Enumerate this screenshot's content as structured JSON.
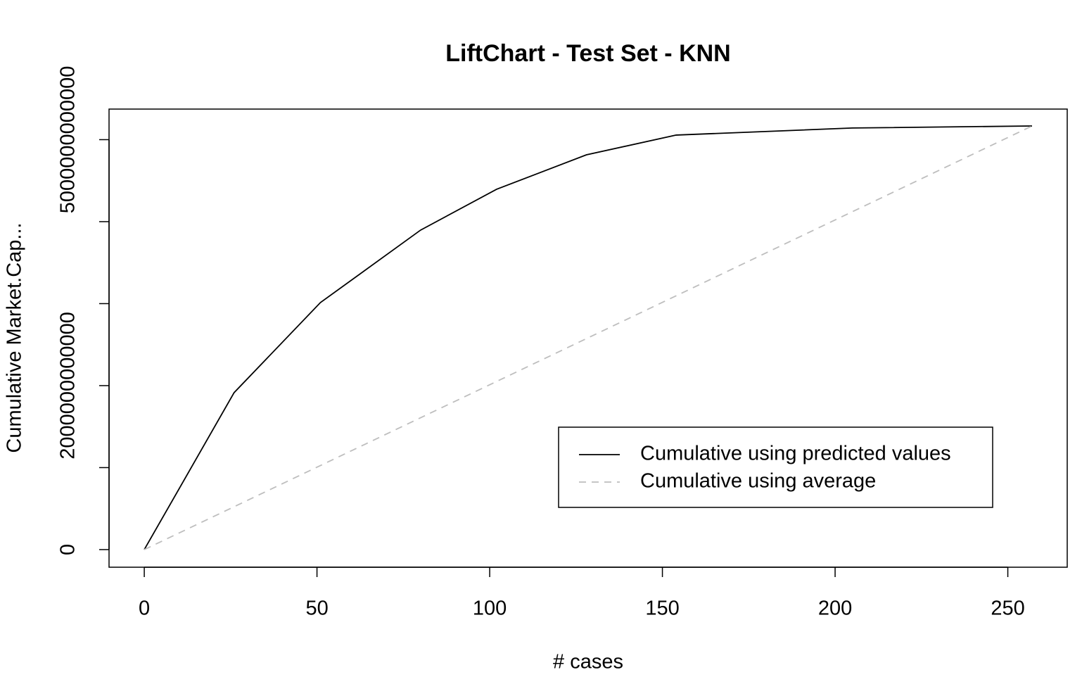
{
  "chart_data": {
    "type": "line",
    "title": "LiftChart - Test Set - KNN",
    "xlabel": "# cases",
    "ylabel": "Cumulative Market.Cap...",
    "xlim": [
      -10.2,
      267.2
    ],
    "ylim": [
      -215000000000,
      5373000000000
    ],
    "xticks": [
      0,
      50,
      100,
      150,
      200,
      250
    ],
    "yticks": [
      0,
      {
        "value": 1000000000000,
        "label": null
      },
      2000000000000,
      {
        "value": 3000000000000,
        "label": null
      },
      {
        "value": 4000000000000,
        "label": null
      },
      5000000000000
    ],
    "legend": "bottom-right",
    "series": [
      {
        "name": "Cumulative using predicted values",
        "color": "#000000",
        "dash": false,
        "x": [
          0,
          26,
          51,
          80,
          102,
          128,
          154,
          205,
          257
        ],
        "values": [
          0,
          1914000000000,
          3013000000000,
          3897000000000,
          4395000000000,
          4815000000000,
          5056000000000,
          5142000000000,
          5167000000000
        ]
      },
      {
        "name": "Cumulative using average",
        "color": "#bebebe",
        "dash": true,
        "x": [
          0,
          257
        ],
        "values": [
          0,
          5167000000000
        ]
      }
    ]
  }
}
